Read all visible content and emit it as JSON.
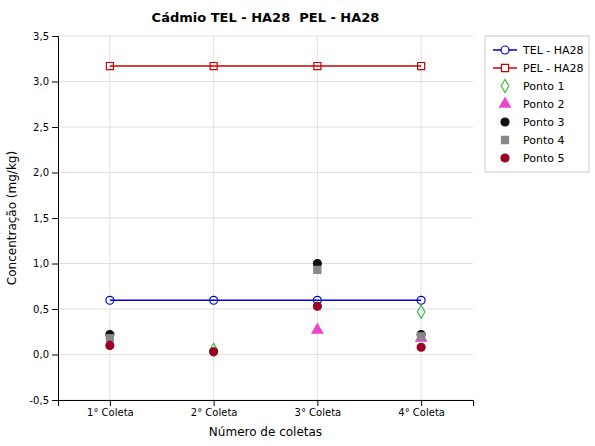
{
  "chart_data": {
    "type": "scatter",
    "title": "Cádmio TEL - HA28  PEL - HA28",
    "x_label": "Número de coletas",
    "y_label": "Concentração (mg/kg)",
    "x": [
      1,
      2,
      3,
      4
    ],
    "xlim": [
      0.5,
      4.5
    ],
    "xticks": [
      {
        "value": 1,
        "label": "1° Coleta"
      },
      {
        "value": 2,
        "label": "2° Coleta"
      },
      {
        "value": 3,
        "label": "3° Coleta"
      },
      {
        "value": 4,
        "label": "4° Coleta"
      }
    ],
    "ylim": [
      -0.5,
      3.5
    ],
    "yticks": [
      {
        "value": -0.5,
        "label": "-0,5"
      },
      {
        "value": 0.0,
        "label": "0,0"
      },
      {
        "value": 0.5,
        "label": "0,5"
      },
      {
        "value": 1.0,
        "label": "1,0"
      },
      {
        "value": 1.5,
        "label": "1,5"
      },
      {
        "value": 2.0,
        "label": "2,0"
      },
      {
        "value": 2.5,
        "label": "2,5"
      },
      {
        "value": 3.0,
        "label": "3,0"
      },
      {
        "value": 3.5,
        "label": "3,5"
      }
    ],
    "grid": true,
    "legend": "upper right",
    "series": [
      {
        "name": "TEL - HA28",
        "type": "line",
        "color": "#0000cc",
        "marker": "circle-open",
        "values": [
          0.596,
          0.596,
          0.596,
          0.596
        ]
      },
      {
        "name": "PEL - HA28",
        "type": "line",
        "color": "#cc0000",
        "marker": "square-open",
        "values": [
          3.17,
          3.17,
          3.17,
          3.17
        ]
      },
      {
        "name": "Ponto 1",
        "type": "scatter",
        "color": "#44bb44",
        "marker": "diamond-open",
        "values": [
          null,
          0.05,
          null,
          0.47
        ]
      },
      {
        "name": "Ponto 2",
        "type": "scatter",
        "color": "#ee44cc",
        "marker": "triangle",
        "values": [
          null,
          null,
          0.27,
          0.18
        ]
      },
      {
        "name": "Ponto 3",
        "type": "scatter",
        "color": "#111111",
        "marker": "circle",
        "values": [
          0.22,
          null,
          1.0,
          0.22
        ]
      },
      {
        "name": "Ponto 4",
        "type": "scatter",
        "color": "#888888",
        "marker": "square",
        "values": [
          0.18,
          null,
          0.93,
          0.2
        ]
      },
      {
        "name": "Ponto 5",
        "type": "scatter",
        "color": "#990022",
        "marker": "circle",
        "values": [
          0.1,
          0.03,
          0.53,
          0.08
        ]
      }
    ]
  }
}
